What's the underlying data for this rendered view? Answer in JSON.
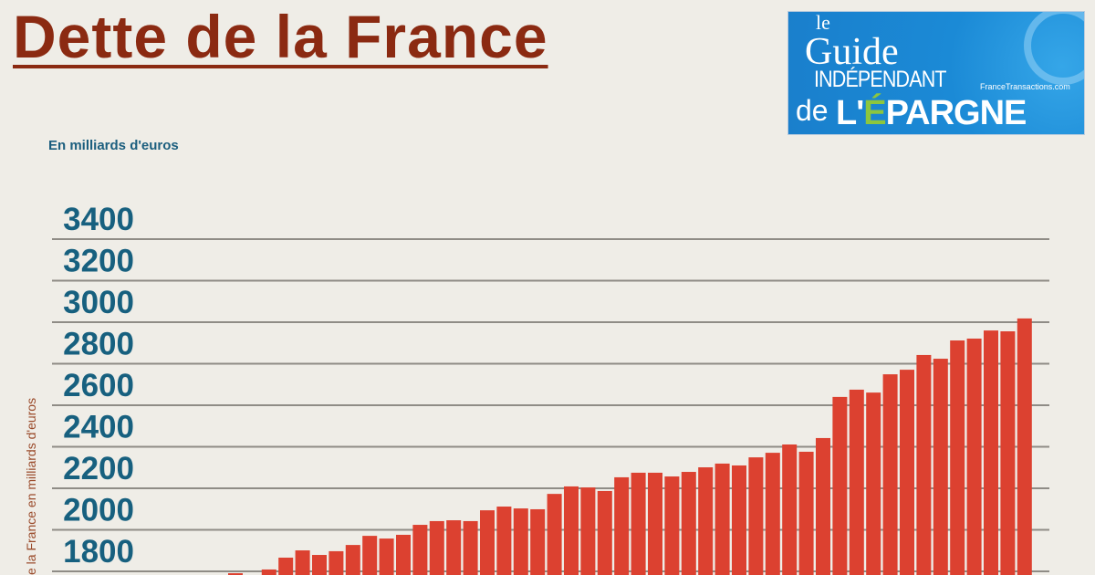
{
  "header": {
    "title": "Dette de la France",
    "subtitle": "En milliards d'euros"
  },
  "logo": {
    "line1": "le",
    "line2": "Guide",
    "line3": "INDÉPENDANT",
    "site": "FranceTransactions.com",
    "line4_prefix": "de",
    "line4_l": "L'",
    "line4_e": "É",
    "line4_rest": "PARGNE",
    "colors": {
      "background": "#1b8ad6",
      "accent": "#8cc63f"
    }
  },
  "chart_data": {
    "type": "bar",
    "title": "Dette de la France",
    "subtitle": "En milliards d'euros",
    "ylabel_visible": "e la France en milliards d'euros",
    "yticks": [
      1800,
      2000,
      2200,
      2400,
      2600,
      2800,
      3000,
      3200,
      3400
    ],
    "ylim_visible": [
      1780,
      3400
    ],
    "grid": true,
    "bar_color": "#dc4130",
    "values": [
      1791,
      1775,
      1809,
      1866,
      1901,
      1879,
      1897,
      1927,
      1971,
      1958,
      1976,
      2024,
      2042,
      2046,
      2042,
      2094,
      2112,
      2103,
      2099,
      2173,
      2209,
      2204,
      2187,
      2253,
      2275,
      2275,
      2257,
      2279,
      2301,
      2319,
      2310,
      2349,
      2371,
      2411,
      2376,
      2442,
      2640,
      2675,
      2661,
      2749,
      2771,
      2842,
      2824,
      2912,
      2921,
      2960,
      2956,
      3018
    ]
  }
}
